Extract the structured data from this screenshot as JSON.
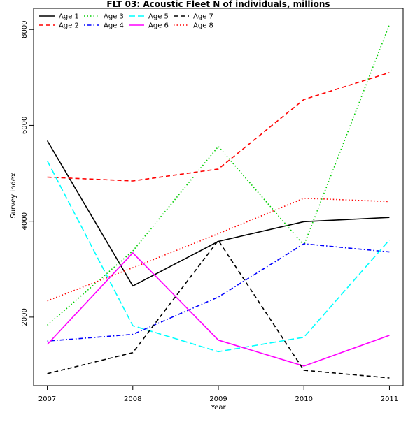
{
  "chart_data": {
    "type": "line",
    "title": "FLT 03: Acoustic Fleet  N of individuals, millions",
    "xlabel": "Year",
    "ylabel": "Survey index",
    "x": [
      2007,
      2008,
      2009,
      2010,
      2011
    ],
    "x_ticks": [
      "2007",
      "2008",
      "2009",
      "2010",
      "2011"
    ],
    "y_ticks": [
      "2000",
      "4000",
      "6000",
      "8000"
    ],
    "xlim": [
      2006.84,
      2011.16
    ],
    "ylim": [
      570,
      8440
    ],
    "grid": false,
    "legend_position": "top-left",
    "series": [
      {
        "name": "Age 1",
        "color": "#000000",
        "dash": "solid",
        "values": [
          5680,
          2650,
          3580,
          3990,
          4080
        ]
      },
      {
        "name": "Age 2",
        "color": "#ff0000",
        "dash": "dashed",
        "values": [
          4920,
          4840,
          5090,
          6540,
          7100
        ]
      },
      {
        "name": "Age 3",
        "color": "#00cd00",
        "dash": "dotted",
        "values": [
          1830,
          3380,
          5560,
          3500,
          8100
        ]
      },
      {
        "name": "Age 4",
        "color": "#0000ff",
        "dash": "dotdash",
        "values": [
          1500,
          1640,
          2420,
          3530,
          3360
        ]
      },
      {
        "name": "Age 5",
        "color": "#00ffff",
        "dash": "longdash",
        "values": [
          5260,
          1820,
          1280,
          1580,
          3610
        ]
      },
      {
        "name": "Age 6",
        "color": "#ff00ff",
        "dash": "solid",
        "values": [
          1430,
          3340,
          1520,
          980,
          1620
        ]
      },
      {
        "name": "Age 7",
        "color": "#000000",
        "dash": "dashed",
        "values": [
          820,
          1260,
          3600,
          890,
          730
        ]
      },
      {
        "name": "Age 8",
        "color": "#ff0000",
        "dash": "dotted",
        "values": [
          2340,
          3030,
          3740,
          4480,
          4410
        ]
      }
    ]
  }
}
